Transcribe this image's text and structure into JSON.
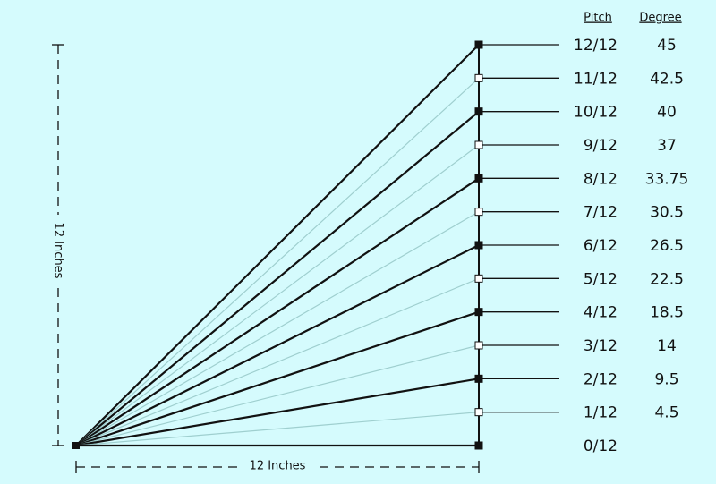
{
  "header": {
    "pitch": "Pitch",
    "degree": "Degree"
  },
  "rows": [
    {
      "pitch": "12/12",
      "degree": "45"
    },
    {
      "pitch": "11/12",
      "degree": "42.5"
    },
    {
      "pitch": "10/12",
      "degree": "40"
    },
    {
      "pitch": "9/12",
      "degree": "37"
    },
    {
      "pitch": "8/12",
      "degree": "33.75"
    },
    {
      "pitch": "7/12",
      "degree": "30.5"
    },
    {
      "pitch": "6/12",
      "degree": "26.5"
    },
    {
      "pitch": "5/12",
      "degree": "22.5"
    },
    {
      "pitch": "4/12",
      "degree": "18.5"
    },
    {
      "pitch": "3/12",
      "degree": "14"
    },
    {
      "pitch": "2/12",
      "degree": "9.5"
    },
    {
      "pitch": "1/12",
      "degree": "4.5"
    },
    {
      "pitch": "0/12",
      "degree": null
    }
  ],
  "vertical_label": "12 Inches",
  "horizontal_label": "12 Inches"
}
